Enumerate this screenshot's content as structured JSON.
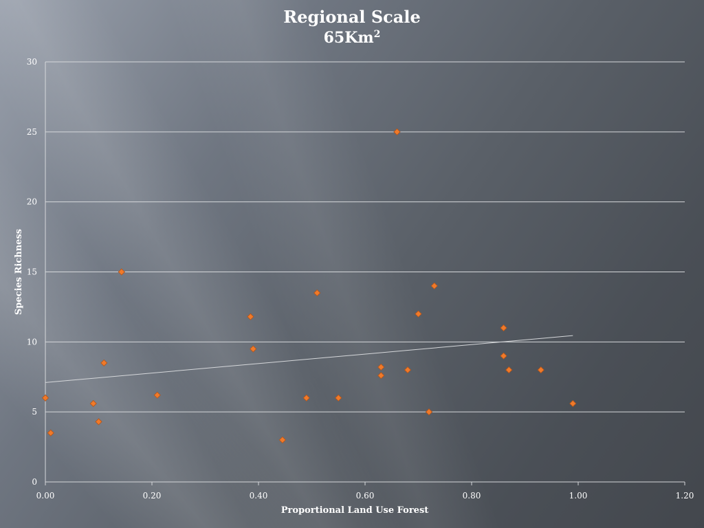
{
  "chart_data": {
    "type": "scatter",
    "title": "Regional Scale",
    "subtitle": "65Km",
    "subtitle_superscript": "2",
    "xlabel": "Proportional Land Use Forest",
    "ylabel": "Species Richness",
    "xlim": [
      0,
      1.2
    ],
    "ylim": [
      0,
      30
    ],
    "x_ticks": [
      "0.00",
      "0.20",
      "0.40",
      "0.60",
      "0.80",
      "1.00",
      "1.20"
    ],
    "y_ticks": [
      "0",
      "5",
      "10",
      "15",
      "20",
      "25",
      "30"
    ],
    "grid": "horizontal",
    "marker_color": "#f07a2a",
    "marker_edge_color": "#b3541a",
    "gridline_color": "#d6d8db",
    "trendline_color": "#d6d8db",
    "points": [
      {
        "x": 0.0,
        "y": 6.0
      },
      {
        "x": 0.01,
        "y": 3.5
      },
      {
        "x": 0.09,
        "y": 5.6
      },
      {
        "x": 0.1,
        "y": 4.3
      },
      {
        "x": 0.11,
        "y": 8.5
      },
      {
        "x": 0.143,
        "y": 15.0
      },
      {
        "x": 0.21,
        "y": 6.2
      },
      {
        "x": 0.385,
        "y": 11.8
      },
      {
        "x": 0.39,
        "y": 9.5
      },
      {
        "x": 0.445,
        "y": 3.0
      },
      {
        "x": 0.49,
        "y": 6.0
      },
      {
        "x": 0.51,
        "y": 13.5
      },
      {
        "x": 0.55,
        "y": 6.0
      },
      {
        "x": 0.63,
        "y": 8.2
      },
      {
        "x": 0.63,
        "y": 7.6
      },
      {
        "x": 0.66,
        "y": 25.0
      },
      {
        "x": 0.68,
        "y": 8.0
      },
      {
        "x": 0.7,
        "y": 12.0
      },
      {
        "x": 0.72,
        "y": 5.0
      },
      {
        "x": 0.73,
        "y": 14.0
      },
      {
        "x": 0.86,
        "y": 11.0
      },
      {
        "x": 0.86,
        "y": 9.0
      },
      {
        "x": 0.87,
        "y": 8.0
      },
      {
        "x": 0.93,
        "y": 8.0
      },
      {
        "x": 0.99,
        "y": 5.6
      }
    ],
    "trendline": {
      "x": [
        0.0,
        0.99
      ],
      "y": [
        7.1,
        10.45
      ]
    }
  }
}
